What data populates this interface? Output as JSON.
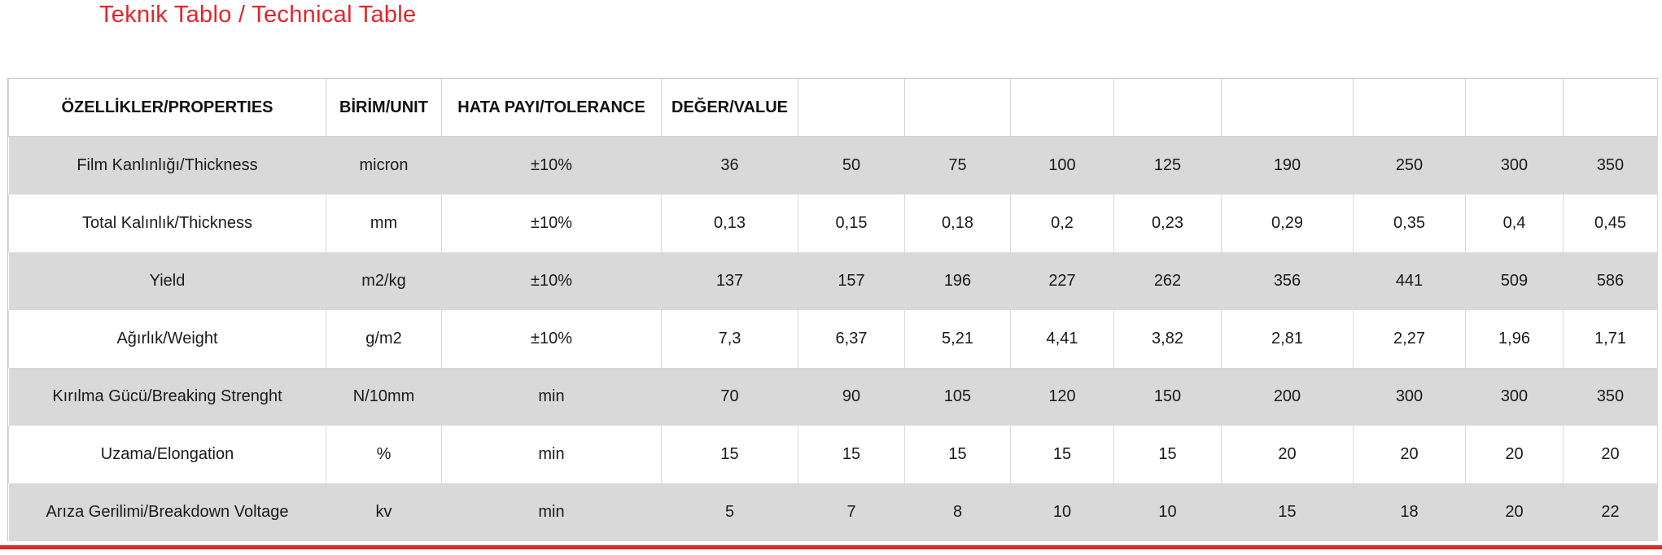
{
  "title": "Teknik Tablo / Technical Table",
  "colors": {
    "accent_red": "#E3242B",
    "shaded_row_gray": "#D9D9D9",
    "border_gray": "#C9C9C9"
  },
  "table": {
    "headers": {
      "properties": "ÖZELLİKLER/PROPERTIES",
      "unit": "BİRİM/UNIT",
      "tolerance": "HATA PAYI/TOLERANCE",
      "value": "DEĞER/VALUE"
    },
    "empty_header_count": 8,
    "rows": [
      {
        "property": "Film Kanlınlığı/Thickness",
        "unit": "micron",
        "tolerance": "±10%",
        "values": [
          "36",
          "50",
          "75",
          "100",
          "125",
          "190",
          "250",
          "300",
          "350"
        ]
      },
      {
        "property": "Total Kalınlık/Thickness",
        "unit": "mm",
        "tolerance": "±10%",
        "values": [
          "0,13",
          "0,15",
          "0,18",
          "0,2",
          "0,23",
          "0,29",
          "0,35",
          "0,4",
          "0,45"
        ]
      },
      {
        "property": "Yield",
        "unit": "m2/kg",
        "tolerance": "±10%",
        "values": [
          "137",
          "157",
          "196",
          "227",
          "262",
          "356",
          "441",
          "509",
          "586"
        ]
      },
      {
        "property": "Ağırlık/Weight",
        "unit": "g/m2",
        "tolerance": "±10%",
        "values": [
          "7,3",
          "6,37",
          "5,21",
          "4,41",
          "3,82",
          "2,81",
          "2,27",
          "1,96",
          "1,71"
        ]
      },
      {
        "property": "Kırılma Gücü/Breaking Strenght",
        "unit": "N/10mm",
        "tolerance": "min",
        "values": [
          "70",
          "90",
          "105",
          "120",
          "150",
          "200",
          "300",
          "300",
          "350"
        ]
      },
      {
        "property": "Uzama/Elongation",
        "unit": "%",
        "tolerance": "min",
        "values": [
          "15",
          "15",
          "15",
          "15",
          "15",
          "20",
          "20",
          "20",
          "20"
        ]
      },
      {
        "property": "Arıza Gerilimi/Breakdown Voltage",
        "unit": "kv",
        "tolerance": "min",
        "values": [
          "5",
          "7",
          "8",
          "10",
          "10",
          "15",
          "18",
          "20",
          "22"
        ]
      }
    ]
  }
}
